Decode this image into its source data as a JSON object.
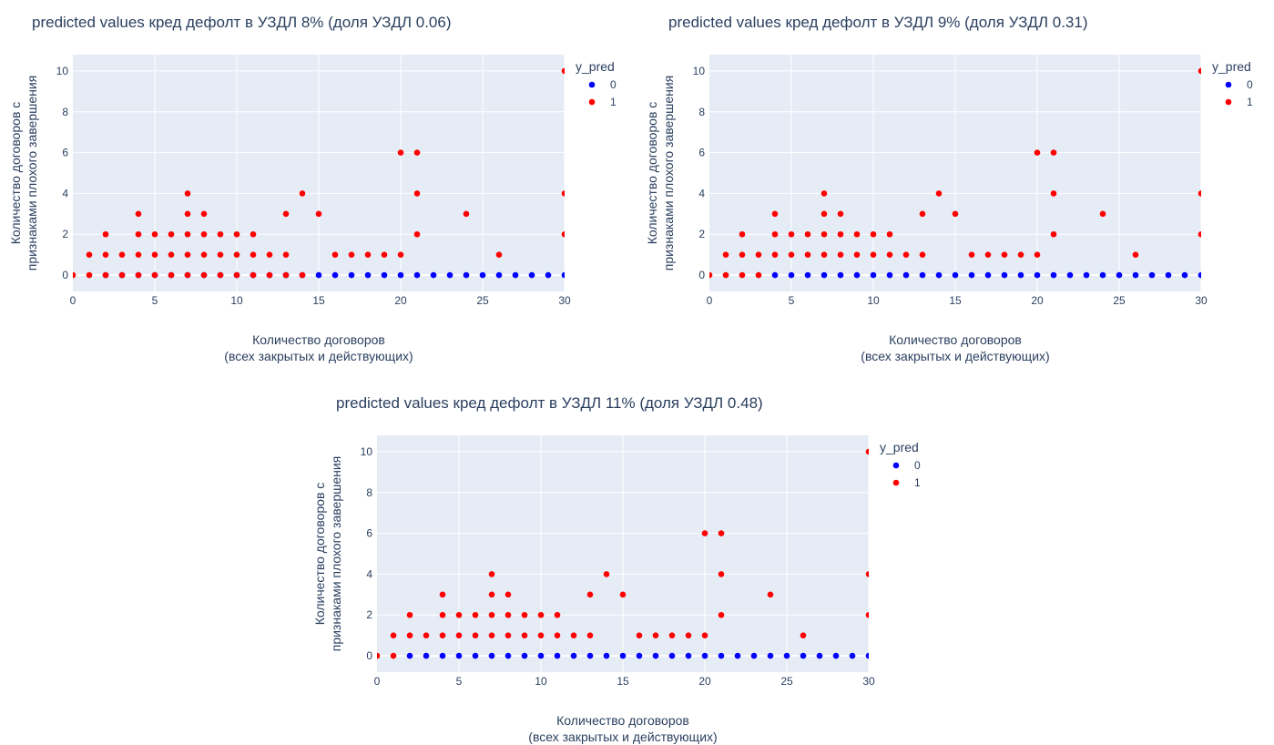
{
  "chart_data": [
    {
      "type": "scatter",
      "title": "predicted values кред дефолт в УЗДЛ 8% (доля УЗДЛ 0.06)",
      "xlabel": [
        "Количество договоров",
        "(всех закрытых и действующих)"
      ],
      "ylabel": [
        "Количество договоров с",
        "признаками плохого завершения"
      ],
      "xlim": [
        0,
        30
      ],
      "ylim": [
        -0.8,
        10.8
      ],
      "xticks": [
        0,
        5,
        10,
        15,
        20,
        25,
        30
      ],
      "yticks": [
        0,
        2,
        4,
        6,
        8,
        10
      ],
      "grid": true,
      "legend": {
        "title": "y_pred",
        "position": "right"
      },
      "series": [
        {
          "name": "0",
          "color": "#0000ff",
          "x": [
            2,
            3,
            4,
            5,
            6,
            7,
            8,
            9,
            10,
            11,
            12,
            13,
            14,
            15,
            16,
            17,
            18,
            19,
            20,
            21,
            22,
            23,
            24,
            25,
            26,
            27,
            28,
            29,
            30
          ],
          "y": [
            0,
            0,
            0,
            0,
            0,
            0,
            0,
            0,
            0,
            0,
            0,
            0,
            0,
            0,
            0,
            0,
            0,
            0,
            0,
            0,
            0,
            0,
            0,
            0,
            0,
            0,
            0,
            0,
            0
          ]
        },
        {
          "name": "1",
          "color": "#ff0000",
          "x": [
            0,
            1,
            1,
            2,
            2,
            2,
            3,
            3,
            4,
            4,
            4,
            4,
            5,
            5,
            5,
            6,
            6,
            6,
            7,
            7,
            7,
            7,
            7,
            8,
            8,
            8,
            8,
            9,
            9,
            9,
            10,
            10,
            10,
            11,
            11,
            11,
            12,
            12,
            13,
            13,
            13,
            14,
            14,
            15,
            16,
            17,
            18,
            19,
            20,
            20,
            21,
            21,
            21,
            24,
            26,
            30,
            30,
            30
          ],
          "y": [
            0,
            0,
            1,
            0,
            1,
            2,
            0,
            1,
            0,
            1,
            2,
            3,
            0,
            1,
            2,
            0,
            1,
            2,
            0,
            1,
            2,
            3,
            4,
            0,
            1,
            2,
            3,
            0,
            1,
            2,
            0,
            1,
            2,
            0,
            1,
            2,
            0,
            1,
            0,
            1,
            3,
            0,
            4,
            3,
            1,
            1,
            1,
            1,
            1,
            6,
            2,
            4,
            6,
            3,
            1,
            2,
            4,
            10
          ]
        }
      ]
    },
    {
      "type": "scatter",
      "title": "predicted values кред дефолт в УЗДЛ 9% (доля УЗДЛ 0.31)",
      "xlabel": [
        "Количество договоров",
        "(всех закрытых и действующих)"
      ],
      "ylabel": [
        "Количество договоров с",
        "признаками плохого завершения"
      ],
      "xlim": [
        0,
        30
      ],
      "ylim": [
        -0.8,
        10.8
      ],
      "xticks": [
        0,
        5,
        10,
        15,
        20,
        25,
        30
      ],
      "yticks": [
        0,
        2,
        4,
        6,
        8,
        10
      ],
      "grid": true,
      "legend": {
        "title": "y_pred",
        "position": "right"
      },
      "series": [
        {
          "name": "0",
          "color": "#0000ff",
          "x": [
            4,
            5,
            6,
            7,
            8,
            9,
            10,
            11,
            12,
            13,
            14,
            15,
            16,
            17,
            18,
            19,
            20,
            21,
            22,
            23,
            24,
            25,
            26,
            27,
            28,
            29,
            30
          ],
          "y": [
            0,
            0,
            0,
            0,
            0,
            0,
            0,
            0,
            0,
            0,
            0,
            0,
            0,
            0,
            0,
            0,
            0,
            0,
            0,
            0,
            0,
            0,
            0,
            0,
            0,
            0,
            0
          ]
        },
        {
          "name": "1",
          "color": "#ff0000",
          "x": [
            0,
            1,
            1,
            2,
            2,
            2,
            3,
            3,
            4,
            4,
            4,
            5,
            5,
            6,
            6,
            7,
            7,
            7,
            7,
            8,
            8,
            8,
            9,
            9,
            10,
            10,
            11,
            11,
            12,
            13,
            13,
            14,
            15,
            16,
            17,
            18,
            19,
            20,
            20,
            21,
            21,
            21,
            24,
            26,
            30,
            30,
            30
          ],
          "y": [
            0,
            0,
            1,
            0,
            1,
            2,
            0,
            1,
            1,
            2,
            3,
            1,
            2,
            1,
            2,
            1,
            2,
            3,
            4,
            1,
            2,
            3,
            1,
            2,
            1,
            2,
            1,
            2,
            1,
            1,
            3,
            4,
            3,
            1,
            1,
            1,
            1,
            1,
            6,
            2,
            4,
            6,
            3,
            1,
            2,
            4,
            10
          ]
        }
      ]
    },
    {
      "type": "scatter",
      "title": "predicted values кред дефолт в УЗДЛ 11% (доля УЗДЛ 0.48)",
      "xlabel": [
        "Количество договоров",
        "(всех закрытых и действующих)"
      ],
      "ylabel": [
        "Количество договоров с",
        "признаками плохого завершения"
      ],
      "xlim": [
        0,
        30
      ],
      "ylim": [
        -0.8,
        10.8
      ],
      "xticks": [
        0,
        5,
        10,
        15,
        20,
        25,
        30
      ],
      "yticks": [
        0,
        2,
        4,
        6,
        8,
        10
      ],
      "grid": true,
      "legend": {
        "title": "y_pred",
        "position": "right"
      },
      "series": [
        {
          "name": "0",
          "color": "#0000ff",
          "x": [
            2,
            3,
            4,
            5,
            6,
            7,
            8,
            9,
            10,
            11,
            12,
            13,
            14,
            15,
            16,
            17,
            18,
            19,
            20,
            21,
            22,
            23,
            24,
            25,
            26,
            27,
            28,
            29,
            30
          ],
          "y": [
            0,
            0,
            0,
            0,
            0,
            0,
            0,
            0,
            0,
            0,
            0,
            0,
            0,
            0,
            0,
            0,
            0,
            0,
            0,
            0,
            0,
            0,
            0,
            0,
            0,
            0,
            0,
            0,
            0
          ]
        },
        {
          "name": "1",
          "color": "#ff0000",
          "x": [
            0,
            1,
            1,
            2,
            2,
            3,
            4,
            4,
            4,
            5,
            5,
            6,
            6,
            7,
            7,
            7,
            7,
            8,
            8,
            8,
            9,
            9,
            10,
            10,
            11,
            11,
            12,
            13,
            13,
            14,
            15,
            16,
            17,
            18,
            19,
            20,
            20,
            21,
            21,
            21,
            24,
            26,
            30,
            30,
            30
          ],
          "y": [
            0,
            0,
            1,
            1,
            2,
            1,
            1,
            2,
            3,
            1,
            2,
            1,
            2,
            1,
            2,
            3,
            4,
            1,
            2,
            3,
            1,
            2,
            1,
            2,
            1,
            2,
            1,
            1,
            3,
            4,
            3,
            1,
            1,
            1,
            1,
            1,
            6,
            2,
            4,
            6,
            3,
            1,
            2,
            4,
            10
          ]
        }
      ]
    }
  ]
}
